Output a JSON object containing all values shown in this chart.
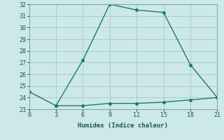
{
  "line1_x": [
    0,
    3,
    6,
    9,
    12,
    15,
    18,
    21
  ],
  "line1_y": [
    24.5,
    23.3,
    27.2,
    32.0,
    31.5,
    31.3,
    26.8,
    24.0
  ],
  "line2_x": [
    3,
    6,
    9,
    12,
    15,
    18,
    21
  ],
  "line2_y": [
    23.3,
    23.3,
    23.5,
    23.5,
    23.6,
    23.8,
    24.0
  ],
  "line_color": "#1a7a6e",
  "bg_color": "#cce8e8",
  "grid_color": "#aacece",
  "xlabel": "Humidex (Indice chaleur)",
  "xlim": [
    0,
    21
  ],
  "ylim": [
    23,
    32
  ],
  "xticks": [
    0,
    3,
    6,
    9,
    12,
    15,
    18,
    21
  ],
  "yticks": [
    23,
    24,
    25,
    26,
    27,
    28,
    29,
    30,
    31,
    32
  ],
  "marker": "o",
  "marker_size": 2.5,
  "line_width": 1.0
}
